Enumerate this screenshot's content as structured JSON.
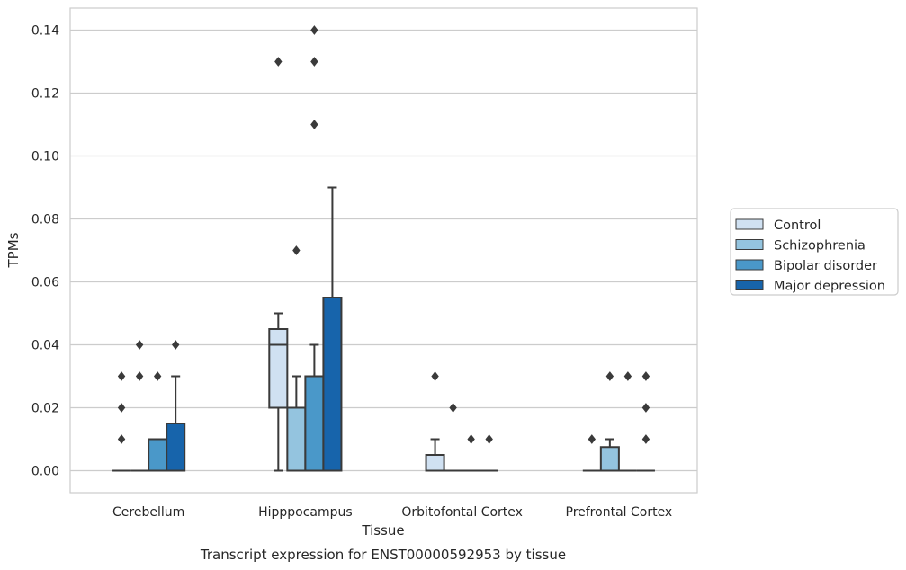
{
  "chart_data": {
    "type": "box",
    "title": "",
    "caption": "Transcript expression for ENST00000592953 by tissue",
    "xlabel": "Tissue",
    "ylabel": "TPMs",
    "ylim": [
      -0.007,
      0.147
    ],
    "yticks": [
      0.0,
      0.02,
      0.04,
      0.06,
      0.08,
      0.1,
      0.12,
      0.14
    ],
    "ytick_labels": [
      "0.00",
      "0.02",
      "0.04",
      "0.06",
      "0.08",
      "0.10",
      "0.12",
      "0.14"
    ],
    "grid": "horizontal",
    "legend_position": "right",
    "categories": [
      "Cerebellum",
      "Hipppocampus",
      "Orbitofontal Cortex",
      "Prefrontal Cortex"
    ],
    "series": [
      {
        "name": "Control",
        "color": "#d0e1f2",
        "boxes": [
          {
            "q1": 0.0,
            "median": 0.0,
            "q3": 0.0,
            "whisker_low": 0.0,
            "whisker_high": 0.0,
            "outliers": [
              0.01,
              0.02,
              0.03
            ]
          },
          {
            "q1": 0.02,
            "median": 0.04,
            "q3": 0.045,
            "whisker_low": 0.0,
            "whisker_high": 0.05,
            "outliers": [
              0.13
            ]
          },
          {
            "q1": 0.0,
            "median": 0.0,
            "q3": 0.005,
            "whisker_low": 0.0,
            "whisker_high": 0.01,
            "outliers": [
              0.03
            ]
          },
          {
            "q1": 0.0,
            "median": 0.0,
            "q3": 0.0,
            "whisker_low": 0.0,
            "whisker_high": 0.0,
            "outliers": [
              0.01
            ]
          }
        ]
      },
      {
        "name": "Schizophrenia",
        "color": "#94c4df",
        "boxes": [
          {
            "q1": 0.0,
            "median": 0.0,
            "q3": 0.0,
            "whisker_low": 0.0,
            "whisker_high": 0.0,
            "outliers": [
              0.03,
              0.04
            ]
          },
          {
            "q1": 0.0,
            "median": 0.0,
            "q3": 0.02,
            "whisker_low": 0.0,
            "whisker_high": 0.03,
            "outliers": [
              0.07
            ]
          },
          {
            "q1": 0.0,
            "median": 0.0,
            "q3": 0.0,
            "whisker_low": 0.0,
            "whisker_high": 0.0,
            "outliers": [
              0.02
            ]
          },
          {
            "q1": 0.0,
            "median": 0.0,
            "q3": 0.0075,
            "whisker_low": 0.0,
            "whisker_high": 0.01,
            "outliers": [
              0.03
            ]
          }
        ]
      },
      {
        "name": "Bipolar disorder",
        "color": "#4a98c9",
        "boxes": [
          {
            "q1": 0.0,
            "median": 0.0,
            "q3": 0.01,
            "whisker_low": 0.0,
            "whisker_high": 0.01,
            "outliers": [
              0.03
            ]
          },
          {
            "q1": 0.0,
            "median": 0.0,
            "q3": 0.03,
            "whisker_low": 0.0,
            "whisker_high": 0.04,
            "outliers": [
              0.11,
              0.13,
              0.14
            ]
          },
          {
            "q1": 0.0,
            "median": 0.0,
            "q3": 0.0,
            "whisker_low": 0.0,
            "whisker_high": 0.0,
            "outliers": [
              0.01
            ]
          },
          {
            "q1": 0.0,
            "median": 0.0,
            "q3": 0.0,
            "whisker_low": 0.0,
            "whisker_high": 0.0,
            "outliers": [
              0.03
            ]
          }
        ]
      },
      {
        "name": "Major depression",
        "color": "#1764ab",
        "boxes": [
          {
            "q1": 0.0,
            "median": 0.0,
            "q3": 0.015,
            "whisker_low": 0.0,
            "whisker_high": 0.03,
            "outliers": [
              0.04
            ]
          },
          {
            "q1": 0.0,
            "median": 0.0,
            "q3": 0.055,
            "whisker_low": 0.0,
            "whisker_high": 0.09,
            "outliers": []
          },
          {
            "q1": 0.0,
            "median": 0.0,
            "q3": 0.0,
            "whisker_low": 0.0,
            "whisker_high": 0.0,
            "outliers": [
              0.01
            ]
          },
          {
            "q1": 0.0,
            "median": 0.0,
            "q3": 0.0,
            "whisker_low": 0.0,
            "whisker_high": 0.0,
            "outliers": [
              0.01,
              0.02,
              0.03
            ]
          }
        ]
      }
    ]
  }
}
